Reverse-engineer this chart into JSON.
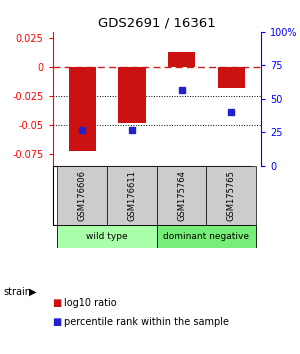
{
  "title": "GDS2691 / 16361",
  "samples": [
    "GSM176606",
    "GSM176611",
    "GSM175764",
    "GSM175765"
  ],
  "log10_ratio": [
    -0.072,
    -0.048,
    0.013,
    -0.018
  ],
  "percentile_rank": [
    27,
    27,
    57,
    40
  ],
  "ylim_left": [
    -0.085,
    0.03
  ],
  "ylim_right": [
    0,
    100
  ],
  "yticks_left": [
    0.025,
    0,
    -0.025,
    -0.05,
    -0.075
  ],
  "yticks_right": [
    100,
    75,
    50,
    25,
    0
  ],
  "groups": [
    {
      "label": "wild type",
      "samples": [
        0,
        1
      ],
      "color": "#aaffaa"
    },
    {
      "label": "dominant negative",
      "samples": [
        2,
        3
      ],
      "color": "#77ee77"
    }
  ],
  "group_label": "strain",
  "bar_color": "#cc1111",
  "dot_color": "#2222cc",
  "zero_line_color": "#cc2222",
  "grid_color": "#000000",
  "bg_color": "#ffffff",
  "bar_width": 0.55,
  "legend_items": [
    {
      "color": "#cc1111",
      "label": "log10 ratio"
    },
    {
      "color": "#2222cc",
      "label": "percentile rank within the sample"
    }
  ]
}
